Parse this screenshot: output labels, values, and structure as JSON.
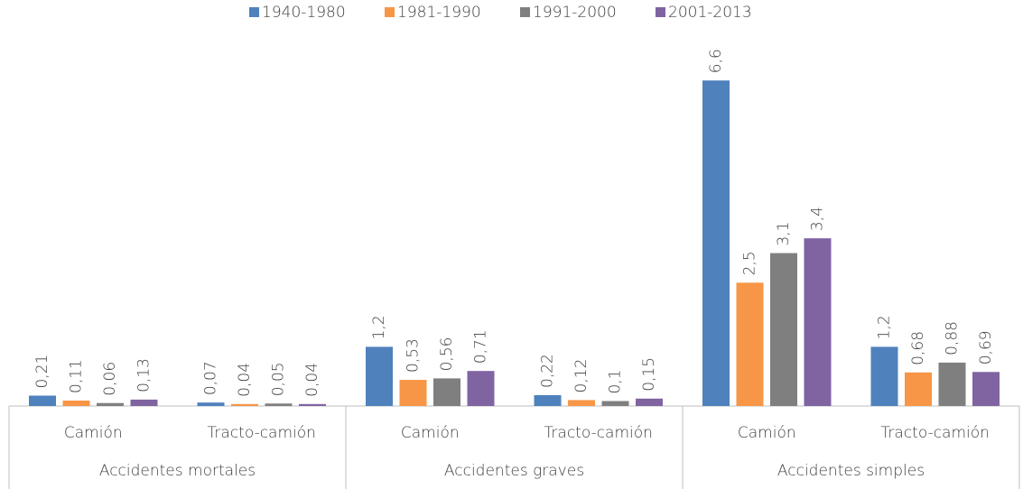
{
  "chart_data": {
    "type": "bar",
    "groups": [
      "Accidentes mortales",
      "Accidentes graves",
      "Accidentes simples"
    ],
    "categories": [
      "Camión",
      "Tracto-camión",
      "Camión",
      "Tracto-camión",
      "Camión",
      "Tracto-camión"
    ],
    "series": [
      {
        "name": "1940-1980",
        "color": "#4f81bd",
        "values": [
          0.21,
          0.07,
          1.2,
          0.22,
          6.6,
          1.2
        ],
        "value_labels": [
          "0,21",
          "0,07",
          "1,2",
          "0,22",
          "6,6",
          "1,2"
        ]
      },
      {
        "name": "1981-1990",
        "color": "#f79646",
        "values": [
          0.11,
          0.04,
          0.53,
          0.12,
          2.5,
          0.68
        ],
        "value_labels": [
          "0,11",
          "0,04",
          "0,53",
          "0,12",
          "2,5",
          "0,68"
        ]
      },
      {
        "name": "1991-2000",
        "color": "#7f7f7f",
        "values": [
          0.06,
          0.05,
          0.56,
          0.1,
          3.1,
          0.88
        ],
        "value_labels": [
          "0,06",
          "0,05",
          "0,56",
          "0,1",
          "3,1",
          "0,88"
        ]
      },
      {
        "name": "2001-2013",
        "color": "#8064a2",
        "values": [
          0.13,
          0.04,
          0.71,
          0.15,
          3.4,
          0.69
        ],
        "value_labels": [
          "0,13",
          "0,04",
          "0,71",
          "0,15",
          "3,4",
          "0,69"
        ]
      }
    ],
    "ylim": [
      0,
      7.5
    ],
    "legend": "top"
  }
}
